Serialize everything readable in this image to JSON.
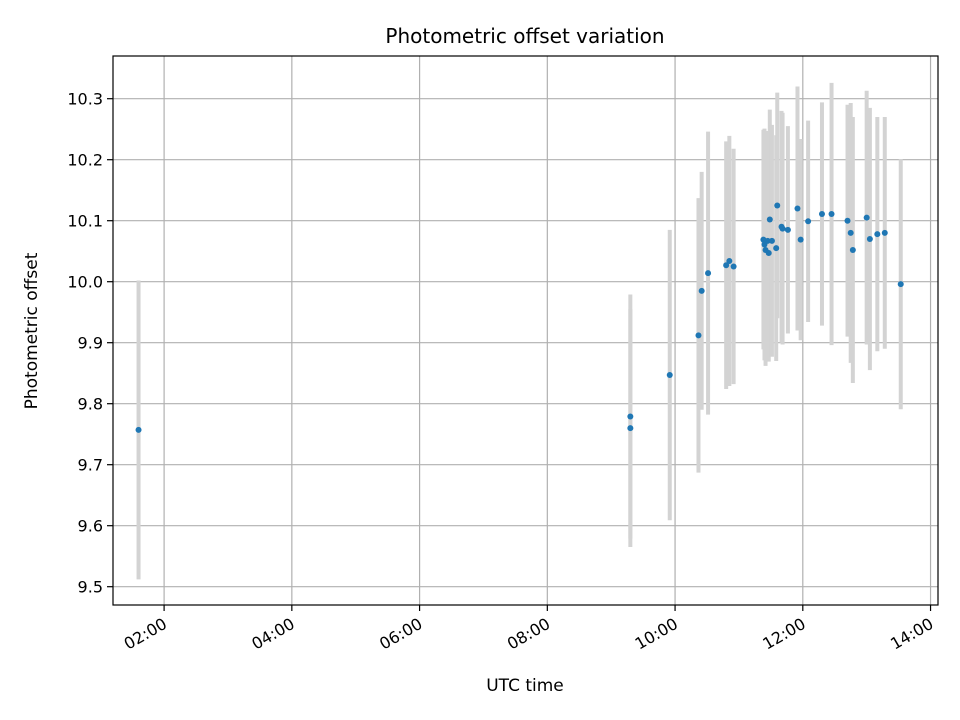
{
  "chart_data": {
    "type": "scatter",
    "title": "Photometric offset variation",
    "xlabel": "UTC time",
    "ylabel": "Photometric offset",
    "x_ticks": [
      "02:00",
      "04:00",
      "06:00",
      "08:00",
      "10:00",
      "12:00",
      "14:00"
    ],
    "y_ticks": [
      "9.5",
      "9.6",
      "9.7",
      "9.8",
      "9.9",
      "10.0",
      "10.1",
      "10.2",
      "10.3"
    ],
    "xlim": [
      "01:12",
      "14:07"
    ],
    "ylim": [
      9.47,
      10.37
    ],
    "grid": true,
    "colors": {
      "points": "#1f77b4",
      "errorbars": "#d3d3d3",
      "grid": "#b0b0b0"
    },
    "points": [
      {
        "x": "01:36",
        "y": 9.757,
        "yerr": 0.245
      },
      {
        "x": "09:18",
        "y": 9.779,
        "yerr": 0.2
      },
      {
        "x": "09:18",
        "y": 9.76,
        "yerr": 0.195
      },
      {
        "x": "09:55",
        "y": 9.847,
        "yerr": 0.238
      },
      {
        "x": "10:22",
        "y": 9.912,
        "yerr": 0.225
      },
      {
        "x": "10:25",
        "y": 9.985,
        "yerr": 0.195
      },
      {
        "x": "10:31",
        "y": 10.014,
        "yerr": 0.232
      },
      {
        "x": "10:48",
        "y": 10.027,
        "yerr": 0.203
      },
      {
        "x": "10:51",
        "y": 10.034,
        "yerr": 0.205
      },
      {
        "x": "10:55",
        "y": 10.025,
        "yerr": 0.193
      },
      {
        "x": "11:23",
        "y": 10.069,
        "yerr": 0.18
      },
      {
        "x": "11:24",
        "y": 10.061,
        "yerr": 0.19
      },
      {
        "x": "11:25",
        "y": 10.052,
        "yerr": 0.19
      },
      {
        "x": "11:27",
        "y": 10.067,
        "yerr": 0.18
      },
      {
        "x": "11:28",
        "y": 10.047,
        "yerr": 0.178
      },
      {
        "x": "11:29",
        "y": 10.102,
        "yerr": 0.18
      },
      {
        "x": "11:31",
        "y": 10.067,
        "yerr": 0.19
      },
      {
        "x": "11:35",
        "y": 10.055,
        "yerr": 0.185
      },
      {
        "x": "11:36",
        "y": 10.125,
        "yerr": 0.185
      },
      {
        "x": "11:40",
        "y": 10.09,
        "yerr": 0.19
      },
      {
        "x": "11:41",
        "y": 10.087,
        "yerr": 0.19
      },
      {
        "x": "11:46",
        "y": 10.085,
        "yerr": 0.17
      },
      {
        "x": "11:55",
        "y": 10.12,
        "yerr": 0.2
      },
      {
        "x": "11:58",
        "y": 10.069,
        "yerr": 0.165
      },
      {
        "x": "12:05",
        "y": 10.099,
        "yerr": 0.165
      },
      {
        "x": "12:18",
        "y": 10.111,
        "yerr": 0.183
      },
      {
        "x": "12:27",
        "y": 10.111,
        "yerr": 0.215
      },
      {
        "x": "12:42",
        "y": 10.1,
        "yerr": 0.19
      },
      {
        "x": "12:45",
        "y": 10.08,
        "yerr": 0.213
      },
      {
        "x": "12:47",
        "y": 10.052,
        "yerr": 0.218
      },
      {
        "x": "13:00",
        "y": 10.105,
        "yerr": 0.208
      },
      {
        "x": "13:03",
        "y": 10.07,
        "yerr": 0.215
      },
      {
        "x": "13:10",
        "y": 10.078,
        "yerr": 0.192
      },
      {
        "x": "13:17",
        "y": 10.08,
        "yerr": 0.19
      },
      {
        "x": "13:32",
        "y": 9.996,
        "yerr": 0.205
      }
    ]
  }
}
